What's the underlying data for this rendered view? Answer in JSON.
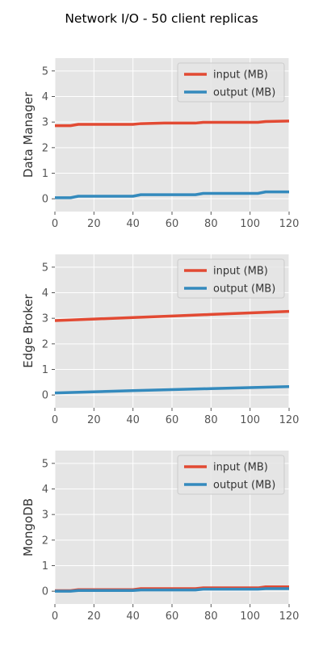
{
  "title": "Network I/O - 50 client replicas",
  "chart_data": [
    {
      "type": "line",
      "ylabel": "Data Manager",
      "xlim": [
        0,
        120
      ],
      "ylim": [
        -0.5,
        5.5
      ],
      "xticks": [
        0,
        20,
        40,
        60,
        80,
        100,
        120
      ],
      "yticks": [
        0,
        1,
        2,
        3,
        4,
        5
      ],
      "grid": true,
      "legend_position": "upper-right",
      "series": [
        {
          "name": "input (MB)",
          "color": "#E24A33",
          "x": [
            0,
            8,
            12,
            40,
            44,
            56,
            72,
            76,
            104,
            108,
            120
          ],
          "y": [
            2.86,
            2.86,
            2.91,
            2.91,
            2.94,
            2.96,
            2.96,
            2.99,
            2.99,
            3.02,
            3.04
          ]
        },
        {
          "name": "output (MB)",
          "color": "#348ABD",
          "x": [
            0,
            8,
            12,
            40,
            44,
            72,
            76,
            104,
            108,
            120
          ],
          "y": [
            0.04,
            0.04,
            0.1,
            0.1,
            0.16,
            0.16,
            0.21,
            0.21,
            0.27,
            0.27
          ]
        }
      ]
    },
    {
      "type": "line",
      "ylabel": "Edge Broker",
      "xlim": [
        0,
        120
      ],
      "ylim": [
        -0.5,
        5.5
      ],
      "xticks": [
        0,
        20,
        40,
        60,
        80,
        100,
        120
      ],
      "yticks": [
        0,
        1,
        2,
        3,
        4,
        5
      ],
      "grid": true,
      "legend_position": "upper-right",
      "series": [
        {
          "name": "input (MB)",
          "color": "#E24A33",
          "x": [
            0,
            20,
            40,
            60,
            80,
            100,
            120
          ],
          "y": [
            2.91,
            2.97,
            3.03,
            3.09,
            3.15,
            3.21,
            3.27
          ]
        },
        {
          "name": "output (MB)",
          "color": "#348ABD",
          "x": [
            0,
            40,
            80,
            120
          ],
          "y": [
            0.08,
            0.17,
            0.25,
            0.33
          ]
        }
      ]
    },
    {
      "type": "line",
      "ylabel": "MongoDB",
      "xlim": [
        0,
        120
      ],
      "ylim": [
        -0.5,
        5.5
      ],
      "xticks": [
        0,
        20,
        40,
        60,
        80,
        100,
        120
      ],
      "yticks": [
        0,
        1,
        2,
        3,
        4,
        5
      ],
      "grid": true,
      "legend_position": "upper-right",
      "series": [
        {
          "name": "input (MB)",
          "color": "#E24A33",
          "x": [
            0,
            8,
            12,
            40,
            44,
            72,
            76,
            104,
            108,
            120
          ],
          "y": [
            0.02,
            0.02,
            0.06,
            0.06,
            0.1,
            0.1,
            0.13,
            0.13,
            0.17,
            0.17
          ]
        },
        {
          "name": "output (MB)",
          "color": "#348ABD",
          "x": [
            0,
            8,
            12,
            40,
            44,
            72,
            76,
            104,
            108,
            120
          ],
          "y": [
            0.0,
            0.0,
            0.03,
            0.03,
            0.05,
            0.05,
            0.08,
            0.08,
            0.1,
            0.1
          ]
        }
      ]
    }
  ]
}
